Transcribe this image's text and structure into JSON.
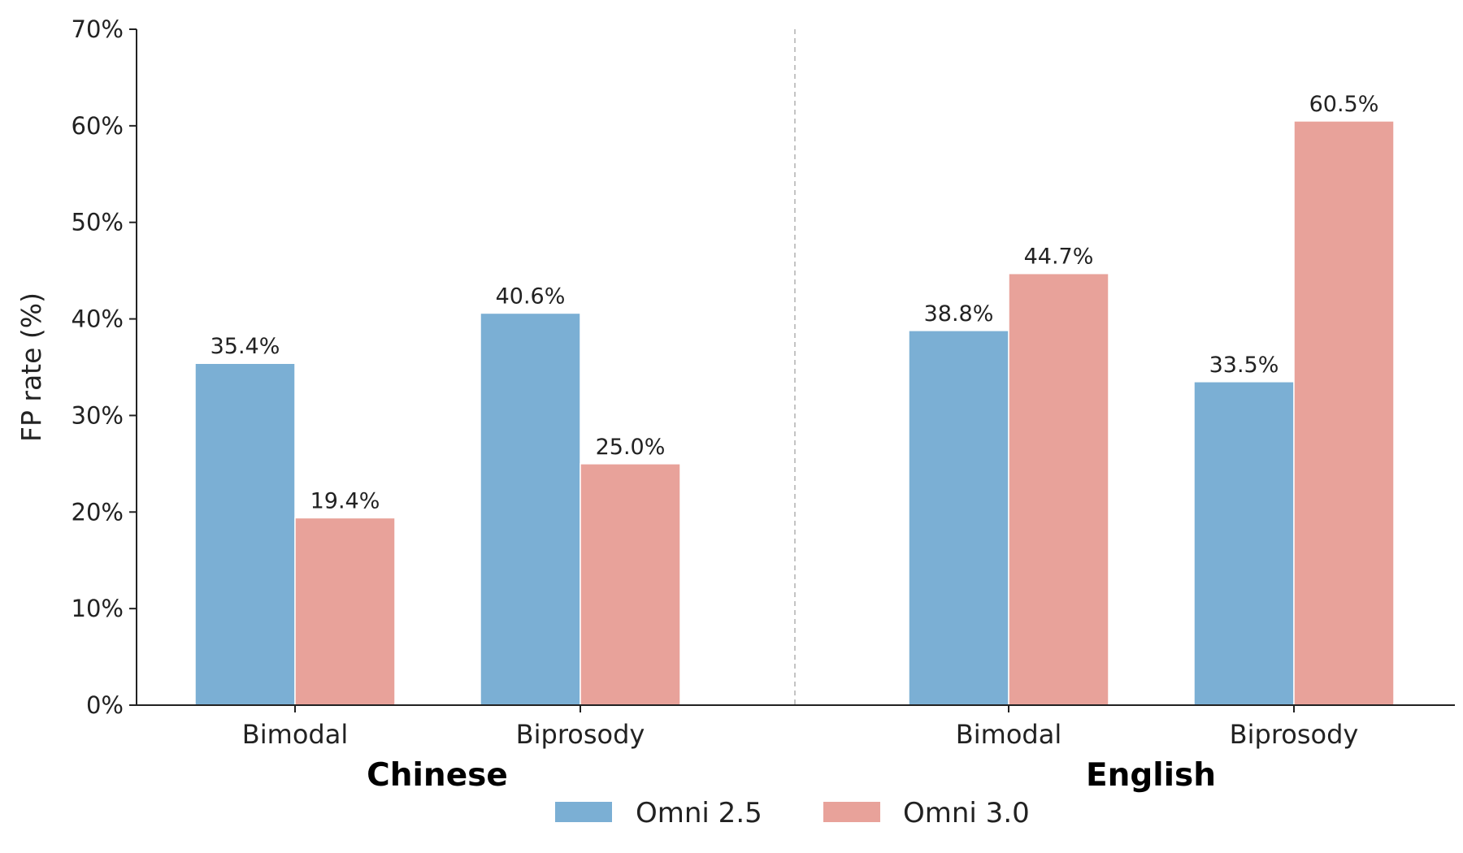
{
  "chart_data": {
    "type": "bar",
    "ylabel": "FP rate (%)",
    "ylim": [
      0,
      70
    ],
    "yticks": [
      0,
      10,
      20,
      30,
      40,
      50,
      60,
      70
    ],
    "ytick_suffix": "%",
    "grid": false,
    "legend_position": "bottom-center",
    "groups": [
      {
        "label": "Chinese",
        "categories": [
          "Bimodal",
          "Biprosody"
        ],
        "series": [
          {
            "name": "Omni 2.5",
            "values": [
              35.4,
              40.6
            ]
          },
          {
            "name": "Omni 3.0",
            "values": [
              19.4,
              25.0
            ]
          }
        ]
      },
      {
        "label": "English",
        "categories": [
          "Bimodal",
          "Biprosody"
        ],
        "series": [
          {
            "name": "Omni 2.5",
            "values": [
              38.8,
              33.5
            ]
          },
          {
            "name": "Omni 3.0",
            "values": [
              44.7,
              60.5
            ]
          }
        ]
      }
    ],
    "legend": [
      {
        "name": "Omni 2.5",
        "color": "#7bafd4"
      },
      {
        "name": "Omni 3.0",
        "color": "#e8a29a"
      }
    ],
    "group_separator": "dashed"
  }
}
